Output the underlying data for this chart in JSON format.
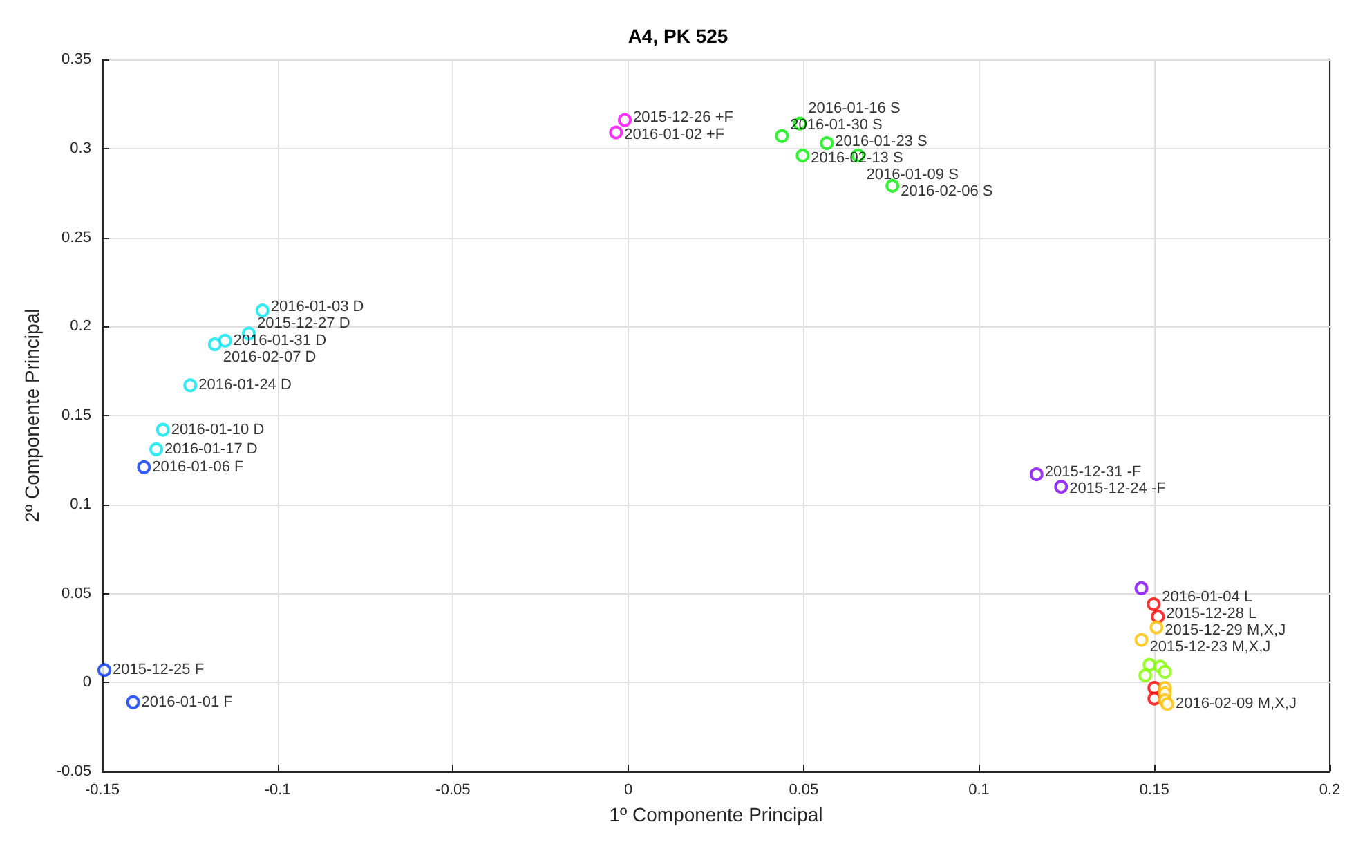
{
  "chart_data": {
    "type": "scatter",
    "title": "A4, PK 525",
    "xlabel": "1º Componente Principal",
    "ylabel": "2º Componente Principal",
    "xlim": [
      -0.15,
      0.2
    ],
    "xticks": [
      -0.15,
      -0.1,
      -0.05,
      0,
      0.05,
      0.1,
      0.15,
      0.2
    ],
    "ylim": [
      -0.05,
      0.35
    ],
    "yticks": [
      -0.05,
      0,
      0.05,
      0.1,
      0.15,
      0.2,
      0.25,
      0.3,
      0.35
    ],
    "grid": true,
    "marker": "circle",
    "series": [
      {
        "color": "#ff00ff",
        "x": [
          -0.001,
          -0.0035
        ],
        "values": [
          0.316,
          0.309
        ],
        "value_labels": [
          "2015-12-26 +F",
          "2016-01-02 +F"
        ]
      },
      {
        "color": "#00ee00",
        "x": [
          0.0489,
          0.0438,
          0.0566,
          0.0497,
          0.0655,
          0.0753
        ],
        "values": [
          0.314,
          0.307,
          0.303,
          0.296,
          0.296,
          0.279
        ],
        "value_labels": [
          "2016-01-16 S",
          "2016-01-30 S",
          "2016-01-23 S",
          "2016-02-13 S",
          "2016-01-09 S",
          "2016-02-06 S"
        ]
      },
      {
        "color": "#00e5ee",
        "x": [
          -0.1043,
          -0.1082,
          -0.115,
          -0.1179,
          -0.1249,
          -0.1327,
          -0.1346
        ],
        "values": [
          0.209,
          0.196,
          0.192,
          0.19,
          0.167,
          0.142,
          0.131
        ],
        "value_labels": [
          "2016-01-03 D",
          "2015-12-27 D",
          "2016-01-31 D",
          "2016-02-07 D",
          "2016-01-24 D",
          "2016-01-10 D",
          "2016-01-17 D"
        ]
      },
      {
        "color": "#0033ff",
        "x": [
          -0.1381,
          -0.1494,
          -0.1412
        ],
        "values": [
          0.121,
          0.007,
          -0.011
        ],
        "value_labels": [
          "2016-01-06 F",
          "2015-12-25 F",
          "2016-01-01 F"
        ]
      },
      {
        "color": "#8000ff",
        "x": [
          0.1164,
          0.1234,
          0.1463
        ],
        "values": [
          0.117,
          0.11,
          0.053
        ],
        "value_labels": [
          "2015-12-31 -F",
          "2015-12-24 -F",
          null
        ]
      },
      {
        "color": "#ff0000",
        "x": [
          0.1498,
          0.151,
          0.15,
          0.15
        ],
        "values": [
          0.044,
          0.037,
          -0.003,
          -0.009
        ],
        "value_labels": [
          "2016-01-04 L",
          "2015-12-28 L",
          null,
          null
        ]
      },
      {
        "color": "#ffbf00",
        "x": [
          0.1506,
          0.1463,
          0.153,
          0.153,
          0.153,
          0.1537
        ],
        "values": [
          0.031,
          0.024,
          -0.003,
          -0.006,
          -0.01,
          -0.012
        ],
        "value_labels": [
          "2015-12-29 M,X,J",
          "2015-12-23 M,X,J",
          null,
          null,
          null,
          "2016-02-09 M,X,J"
        ]
      },
      {
        "color": "#7fff00",
        "x": [
          0.1486,
          0.1517,
          0.1474,
          0.153
        ],
        "values": [
          0.01,
          0.009,
          0.004,
          0.006
        ],
        "value_labels": [
          null,
          null,
          null,
          null
        ]
      }
    ]
  }
}
